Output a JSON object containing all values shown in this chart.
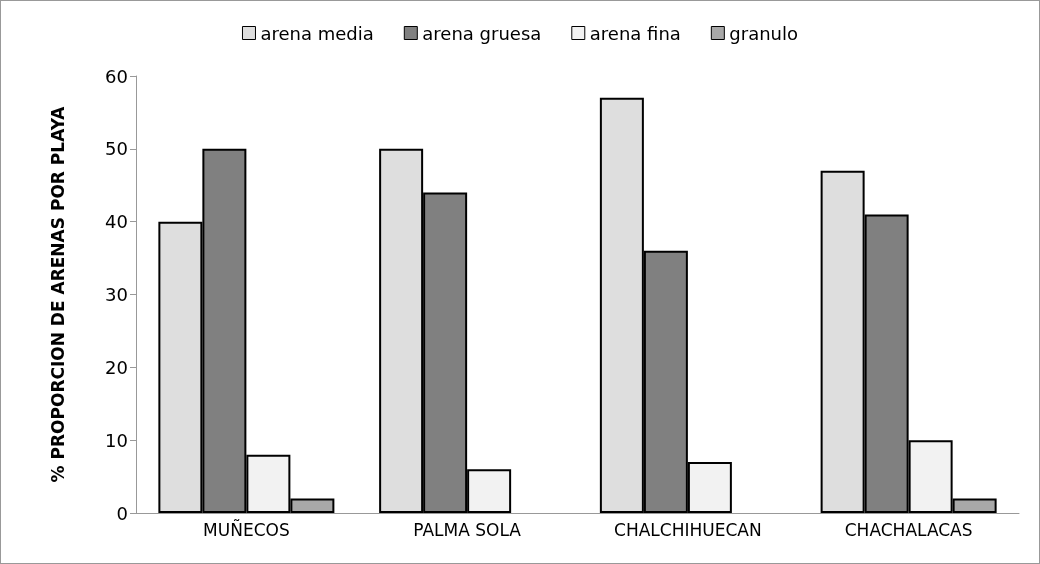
{
  "chart_data": {
    "type": "bar",
    "ylabel": "% PROPORCION DE ARENAS POR PLAYA",
    "categories": [
      "MUÑECOS",
      "PALMA SOLA",
      "CHALCHIHUECAN",
      "CHACHALACAS"
    ],
    "series": [
      {
        "name": "arena media",
        "color": "#dedede",
        "values": [
          40,
          50,
          57,
          47
        ]
      },
      {
        "name": "arena gruesa",
        "color": "#808080",
        "values": [
          50,
          44,
          36,
          41
        ]
      },
      {
        "name": "arena fina",
        "color": "#f2f2f2",
        "values": [
          8,
          6,
          7,
          10
        ]
      },
      {
        "name": "granulo",
        "color": "#a8a8a8",
        "values": [
          2,
          null,
          null,
          2
        ]
      }
    ],
    "ylim": [
      0,
      60
    ],
    "yticks": [
      0,
      10,
      20,
      30,
      40,
      50,
      60
    ],
    "grid": false,
    "legend": "top"
  }
}
